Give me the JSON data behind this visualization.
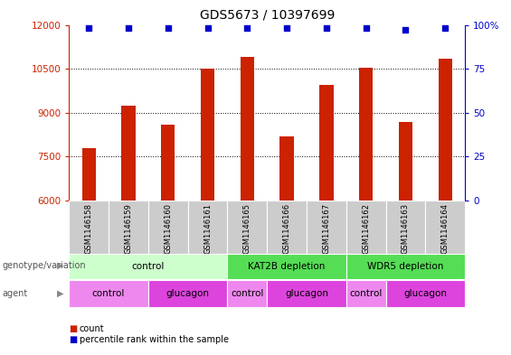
{
  "title": "GDS5673 / 10397699",
  "samples": [
    "GSM1146158",
    "GSM1146159",
    "GSM1146160",
    "GSM1146161",
    "GSM1146165",
    "GSM1146166",
    "GSM1146167",
    "GSM1146162",
    "GSM1146163",
    "GSM1146164"
  ],
  "counts": [
    7800,
    9250,
    8600,
    10500,
    10900,
    8200,
    9950,
    10550,
    8700,
    10850
  ],
  "percentiles": [
    98,
    98,
    98,
    98,
    98,
    98,
    98,
    98,
    97,
    98
  ],
  "ylim_left": [
    6000,
    12000
  ],
  "ylim_right": [
    0,
    100
  ],
  "yticks_left": [
    6000,
    7500,
    9000,
    10500,
    12000
  ],
  "yticks_right": [
    0,
    25,
    50,
    75,
    100
  ],
  "bar_color": "#cc2200",
  "dot_color": "#0000cc",
  "bar_width": 0.35,
  "genotype_groups": [
    {
      "label": "control",
      "start": 0,
      "end": 4,
      "color": "#ccffcc"
    },
    {
      "label": "KAT2B depletion",
      "start": 4,
      "end": 7,
      "color": "#55dd55"
    },
    {
      "label": "WDR5 depletion",
      "start": 7,
      "end": 10,
      "color": "#55dd55"
    }
  ],
  "agent_groups": [
    {
      "label": "control",
      "start": 0,
      "end": 2,
      "color": "#ee88ee"
    },
    {
      "label": "glucagon",
      "start": 2,
      "end": 4,
      "color": "#dd44dd"
    },
    {
      "label": "control",
      "start": 4,
      "end": 5,
      "color": "#ee88ee"
    },
    {
      "label": "glucagon",
      "start": 5,
      "end": 7,
      "color": "#dd44dd"
    },
    {
      "label": "control",
      "start": 7,
      "end": 8,
      "color": "#ee88ee"
    },
    {
      "label": "glucagon",
      "start": 8,
      "end": 10,
      "color": "#dd44dd"
    }
  ],
  "sample_box_color": "#cccccc",
  "title_fontsize": 10,
  "tick_fontsize": 7.5,
  "label_fontsize": 7,
  "sample_fontsize": 6,
  "table_fontsize": 7.5
}
